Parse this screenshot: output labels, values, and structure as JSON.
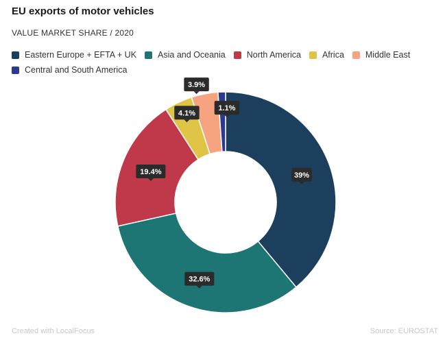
{
  "header": {
    "title": "EU exports of motor vehicles",
    "subtitle": "VALUE MARKET SHARE / 2020"
  },
  "footer": {
    "credit": "Created with LocalFocus",
    "source": "Source: EUROSTAT"
  },
  "chart_data": {
    "type": "pie",
    "donut": true,
    "title": "EU exports of motor vehicles",
    "subtitle": "VALUE MARKET SHARE / 2020",
    "legend_position": "top-left",
    "series": [
      {
        "name": "Eastern Europe + EFTA + UK",
        "value": 39,
        "label": "39%",
        "color": "#1b3f5c"
      },
      {
        "name": "Asia and Oceania",
        "value": 32.6,
        "label": "32.6%",
        "color": "#1d7574"
      },
      {
        "name": "North America",
        "value": 19.4,
        "label": "19.4%",
        "color": "#c0394a"
      },
      {
        "name": "Africa",
        "value": 4.1,
        "label": "4.1%",
        "color": "#dfc445"
      },
      {
        "name": "Middle East",
        "value": 3.9,
        "label": "3.9%",
        "color": "#f5a47f"
      },
      {
        "name": "Central and South America",
        "value": 1.1,
        "label": "1.1%",
        "color": "#2b3a8f"
      }
    ]
  }
}
